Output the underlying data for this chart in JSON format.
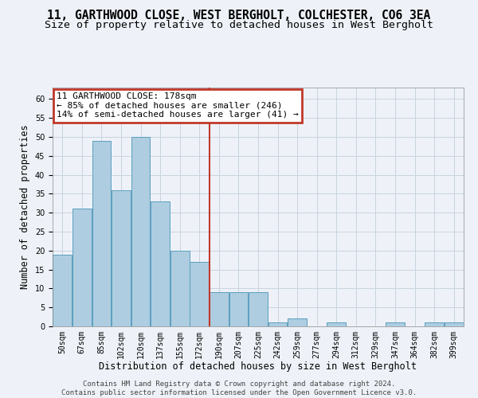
{
  "title": "11, GARTHWOOD CLOSE, WEST BERGHOLT, COLCHESTER, CO6 3EA",
  "subtitle": "Size of property relative to detached houses in West Bergholt",
  "xlabel": "Distribution of detached houses by size in West Bergholt",
  "ylabel": "Number of detached properties",
  "footer_line1": "Contains HM Land Registry data © Crown copyright and database right 2024.",
  "footer_line2": "Contains public sector information licensed under the Open Government Licence v3.0.",
  "categories": [
    "50sqm",
    "67sqm",
    "85sqm",
    "102sqm",
    "120sqm",
    "137sqm",
    "155sqm",
    "172sqm",
    "190sqm",
    "207sqm",
    "225sqm",
    "242sqm",
    "259sqm",
    "277sqm",
    "294sqm",
    "312sqm",
    "329sqm",
    "347sqm",
    "364sqm",
    "382sqm",
    "399sqm"
  ],
  "values": [
    19,
    31,
    49,
    36,
    50,
    33,
    20,
    17,
    9,
    9,
    9,
    1,
    2,
    0,
    1,
    0,
    0,
    1,
    0,
    1,
    1
  ],
  "bar_color": "#aecde0",
  "bar_edge_color": "#5b9fc0",
  "vline_color": "#c0392b",
  "annotation_box_text": "11 GARTHWOOD CLOSE: 178sqm\n← 85% of detached houses are smaller (246)\n14% of semi-detached houses are larger (41) →",
  "annotation_box_edge_color": "#c0392b",
  "annotation_box_facecolor": "white",
  "ylim": [
    0,
    63
  ],
  "yticks": [
    0,
    5,
    10,
    15,
    20,
    25,
    30,
    35,
    40,
    45,
    50,
    55,
    60
  ],
  "grid_color": "#c8d4e0",
  "bg_color": "#eef2f8",
  "title_fontsize": 10.5,
  "subtitle_fontsize": 9.5,
  "axis_label_fontsize": 8.5,
  "tick_fontsize": 7,
  "footer_fontsize": 6.5,
  "annotation_fontsize": 8
}
